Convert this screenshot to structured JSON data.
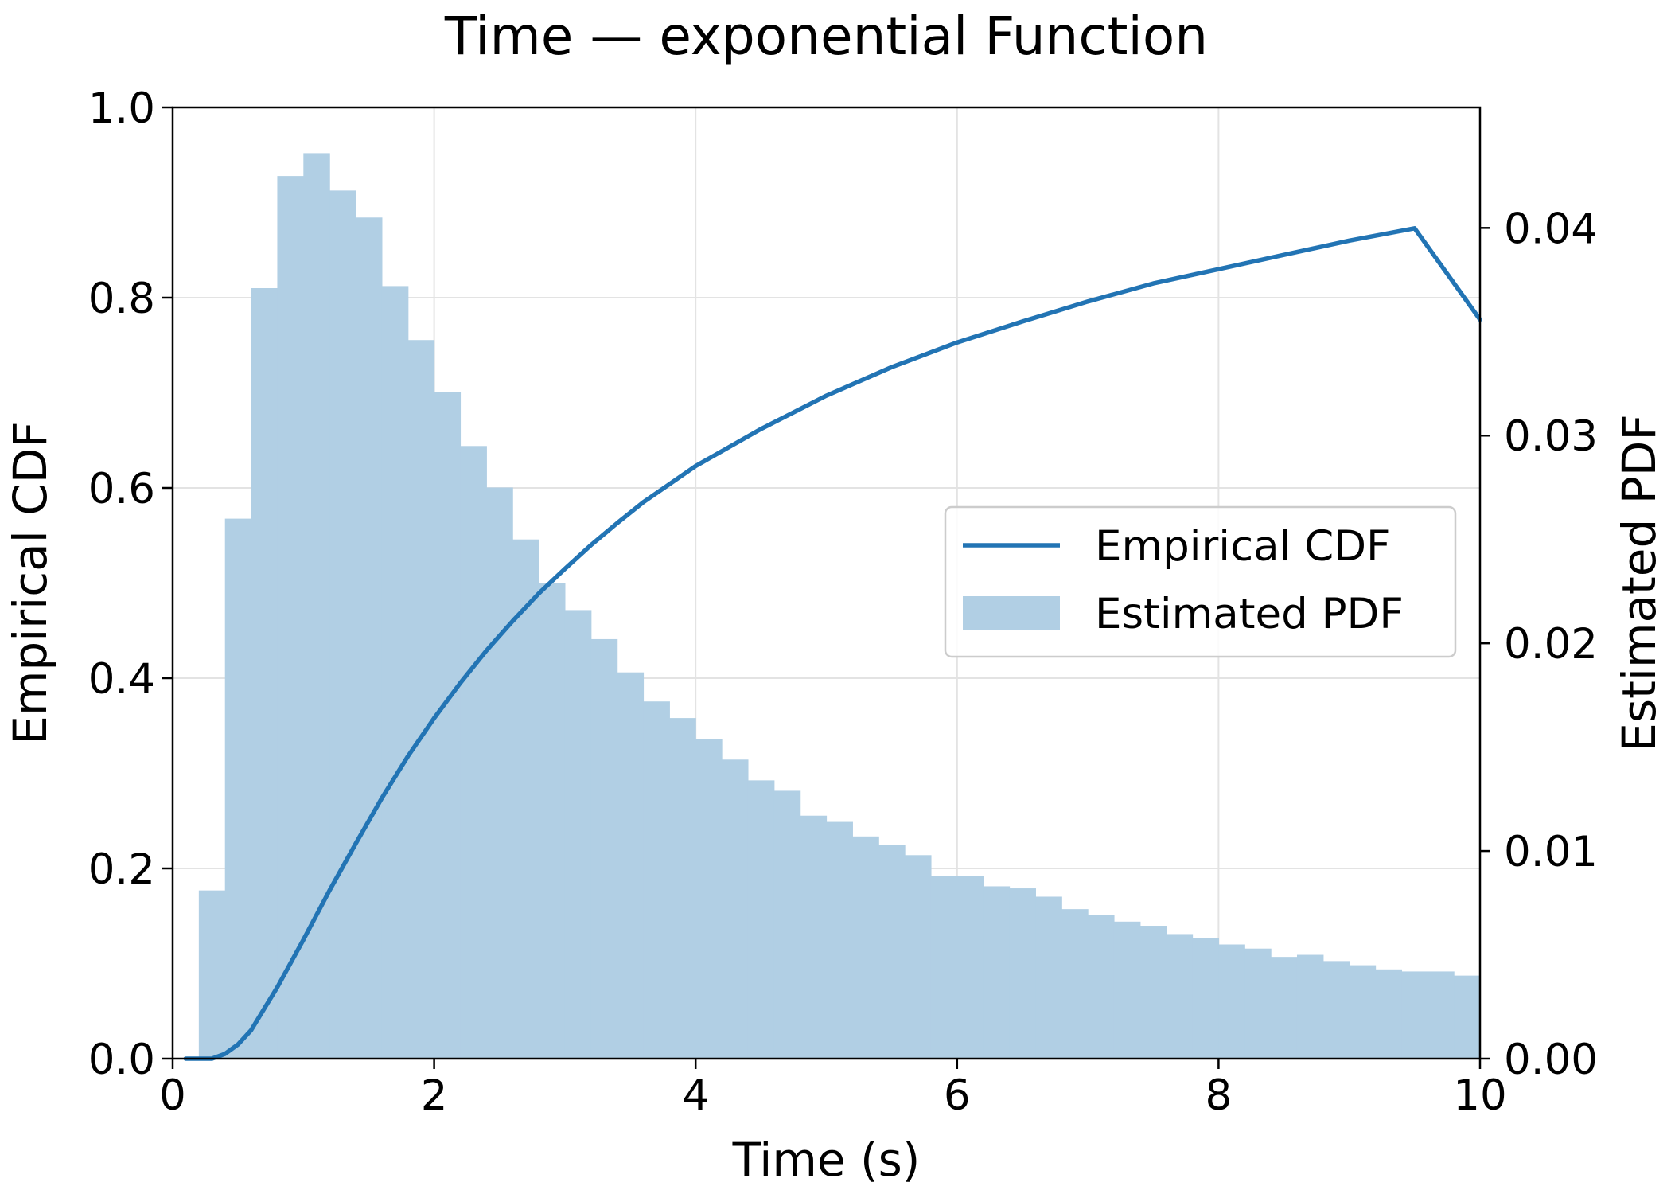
{
  "chart_data": {
    "type": "bar+line",
    "title": "Time — exponential Function",
    "xlabel": "Time (s)",
    "ylabel_left": "Empirical CDF",
    "ylabel_right": "Estimated PDF",
    "xlim": [
      0,
      10
    ],
    "ylim_left": [
      0,
      1.0
    ],
    "ylim_right": [
      0,
      0.0458
    ],
    "x_ticks": [
      "0",
      "2",
      "4",
      "6",
      "8",
      "10"
    ],
    "y_left_ticks": [
      "0.0",
      "0.2",
      "0.4",
      "0.6",
      "0.8",
      "1.0"
    ],
    "y_right_ticks": [
      "0.00",
      "0.01",
      "0.02",
      "0.03",
      "0.04"
    ],
    "grid": true,
    "legend_position": "center-right",
    "legend": [
      {
        "label": "Empirical CDF",
        "kind": "line"
      },
      {
        "label": "Estimated PDF",
        "kind": "patch"
      }
    ],
    "colors": {
      "cdf_line": "#2274b4",
      "pdf_bars": "#b1cfe4",
      "grid": "#e3e3e3"
    },
    "series": [
      {
        "name": "Estimated PDF",
        "kind": "histogram",
        "axis": "right",
        "bin_edges": [
          0.2,
          0.4,
          0.6,
          0.8,
          1.0,
          1.2,
          1.4,
          1.6,
          1.8,
          2.0,
          2.2,
          2.4,
          2.6,
          2.8,
          3.0,
          3.2,
          3.4,
          3.6,
          3.8,
          4.0,
          4.2,
          4.4,
          4.6,
          4.8,
          5.0,
          5.2,
          5.4,
          5.6,
          5.8,
          6.0,
          6.2,
          6.4,
          6.6,
          6.8,
          7.0,
          7.2,
          7.4,
          7.6,
          7.8,
          8.0,
          8.2,
          8.4,
          8.6,
          8.8,
          9.0,
          9.2,
          9.4,
          9.6,
          9.8,
          10.0
        ],
        "values": [
          0.0081,
          0.026,
          0.0371,
          0.0425,
          0.0436,
          0.0418,
          0.0405,
          0.0372,
          0.0346,
          0.0321,
          0.0295,
          0.0275,
          0.025,
          0.0229,
          0.0216,
          0.0202,
          0.0186,
          0.0172,
          0.0164,
          0.0154,
          0.0144,
          0.0134,
          0.0129,
          0.0117,
          0.0114,
          0.0107,
          0.0103,
          0.0098,
          0.0088,
          0.0088,
          0.0083,
          0.0082,
          0.0078,
          0.0072,
          0.0069,
          0.0066,
          0.0064,
          0.006,
          0.0058,
          0.0055,
          0.0053,
          0.0049,
          0.005,
          0.0047,
          0.0045,
          0.0043,
          0.0042,
          0.0042,
          0.004
        ]
      },
      {
        "name": "Empirical CDF",
        "kind": "line",
        "axis": "left",
        "x": [
          0.1,
          0.3,
          0.4,
          0.5,
          0.6,
          0.8,
          1.0,
          1.2,
          1.4,
          1.6,
          1.8,
          2.0,
          2.2,
          2.4,
          2.6,
          2.8,
          3.0,
          3.2,
          3.4,
          3.6,
          3.8,
          4.0,
          4.5,
          5.0,
          5.5,
          6.0,
          6.5,
          7.0,
          7.5,
          8.0,
          8.5,
          9.0,
          9.5,
          10.0
        ],
        "y": [
          0.0,
          0.0,
          0.005,
          0.015,
          0.03,
          0.075,
          0.125,
          0.177,
          0.226,
          0.274,
          0.318,
          0.358,
          0.395,
          0.429,
          0.46,
          0.489,
          0.515,
          0.54,
          0.563,
          0.585,
          0.604,
          0.623,
          0.662,
          0.697,
          0.727,
          0.753,
          0.775,
          0.796,
          0.815,
          0.83,
          0.845,
          0.86,
          0.873,
          0.777
        ]
      }
    ]
  }
}
